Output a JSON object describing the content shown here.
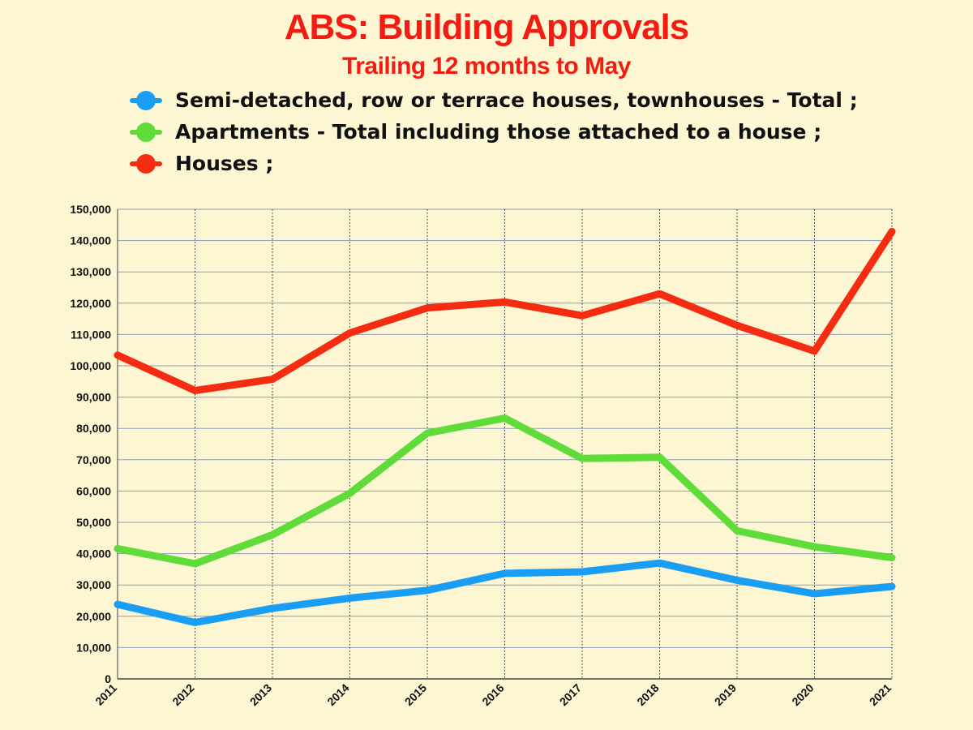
{
  "title": "ABS: Building Approvals",
  "subtitle": "Trailing 12 months to May",
  "legend": [
    {
      "label": "Semi-detached, row or terrace houses, townhouses - Total ;",
      "color": "#1a9ef5"
    },
    {
      "label": "Apartments - Total including those attached to a house ;",
      "color": "#5fdc3a"
    },
    {
      "label": "Houses ;",
      "color": "#f42d12"
    }
  ],
  "chart_data": {
    "type": "line",
    "title": "ABS: Building Approvals",
    "subtitle": "Trailing 12 months to May",
    "xlabel": "",
    "ylabel": "",
    "x": [
      "2011",
      "2012",
      "2013",
      "2014",
      "2015",
      "2016",
      "2017",
      "2018",
      "2019",
      "2020",
      "2021"
    ],
    "ylim": [
      0,
      150000
    ],
    "yticks": [
      0,
      10000,
      20000,
      30000,
      40000,
      50000,
      60000,
      70000,
      80000,
      90000,
      100000,
      110000,
      120000,
      130000,
      140000,
      150000
    ],
    "ytick_labels": [
      "0",
      "10,000",
      "20,000",
      "30,000",
      "40,000",
      "50,000",
      "60,000",
      "70,000",
      "80,000",
      "90,000",
      "100,000",
      "110,000",
      "120,000",
      "130,000",
      "140,000",
      "150,000"
    ],
    "grid": true,
    "legend_position": "top",
    "series": [
      {
        "name": "Semi-detached, row or terrace houses, townhouses - Total ;",
        "color": "#1a9ef5",
        "values": [
          23800,
          18000,
          22500,
          25800,
          28300,
          33700,
          34200,
          37000,
          31500,
          27200,
          29500
        ]
      },
      {
        "name": "Apartments - Total including those attached to a house ;",
        "color": "#5fdc3a",
        "values": [
          41600,
          36800,
          46000,
          59300,
          78500,
          83300,
          70400,
          70800,
          47300,
          42200,
          38700
        ]
      },
      {
        "name": "Houses ;",
        "color": "#f42d12",
        "values": [
          103400,
          92100,
          95700,
          110500,
          118500,
          120400,
          116000,
          123000,
          112900,
          104700,
          142900
        ]
      }
    ]
  }
}
